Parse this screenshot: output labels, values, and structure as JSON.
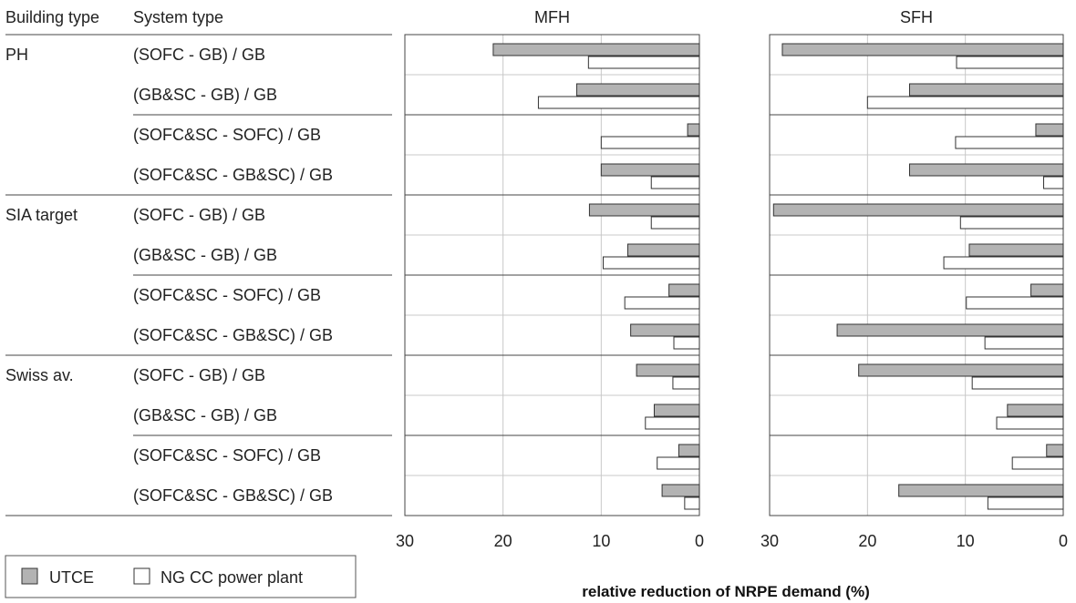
{
  "chart_data": {
    "type": "bar",
    "orientation": "horizontal",
    "xlabel": "relative reduction of NRPE demand (%)",
    "xlim": [
      30,
      0
    ],
    "xticks": [
      30,
      20,
      10,
      0
    ],
    "grid": true,
    "legend_position": "bottom-left",
    "columns": {
      "building_type": "Building type",
      "system_type": "System type"
    },
    "legend": [
      {
        "name": "UTCE",
        "color": "#b3b3b3"
      },
      {
        "name": "NG CC power plant",
        "color": "#ffffff"
      }
    ],
    "rows": [
      {
        "building": "PH",
        "system": "(SOFC - GB) / GB"
      },
      {
        "building": "",
        "system": "(GB&SC - GB) / GB"
      },
      {
        "building": "",
        "system": "(SOFC&SC - SOFC) / GB"
      },
      {
        "building": "",
        "system": "(SOFC&SC - GB&SC) / GB"
      },
      {
        "building": "SIA target",
        "system": "(SOFC - GB) / GB"
      },
      {
        "building": "",
        "system": "(GB&SC - GB) / GB"
      },
      {
        "building": "",
        "system": "(SOFC&SC - SOFC) / GB"
      },
      {
        "building": "",
        "system": "(SOFC&SC - GB&SC) / GB"
      },
      {
        "building": "Swiss av.",
        "system": "(SOFC - GB) / GB"
      },
      {
        "building": "",
        "system": "(GB&SC - GB) / GB"
      },
      {
        "building": "",
        "system": "(SOFC&SC - SOFC) / GB"
      },
      {
        "building": "",
        "system": "(SOFC&SC - GB&SC) / GB"
      }
    ],
    "panels": [
      {
        "title": "MFH",
        "series": [
          {
            "name": "UTCE",
            "values": [
              21.0,
              12.5,
              1.2,
              10.0,
              11.2,
              7.3,
              3.1,
              7.0,
              6.4,
              4.6,
              2.1,
              3.8
            ]
          },
          {
            "name": "NG CC power plant",
            "values": [
              11.3,
              16.4,
              10.0,
              4.9,
              4.9,
              9.8,
              7.6,
              2.6,
              2.7,
              5.5,
              4.3,
              1.5
            ]
          }
        ]
      },
      {
        "title": "SFH",
        "series": [
          {
            "name": "UTCE",
            "values": [
              28.7,
              15.7,
              2.8,
              15.7,
              29.6,
              9.6,
              3.3,
              23.1,
              20.9,
              5.7,
              1.7,
              16.8
            ]
          },
          {
            "name": "NG CC power plant",
            "values": [
              10.9,
              20.0,
              11.0,
              2.0,
              10.5,
              12.2,
              9.9,
              8.0,
              9.3,
              6.8,
              5.2,
              7.7
            ]
          }
        ]
      }
    ]
  }
}
